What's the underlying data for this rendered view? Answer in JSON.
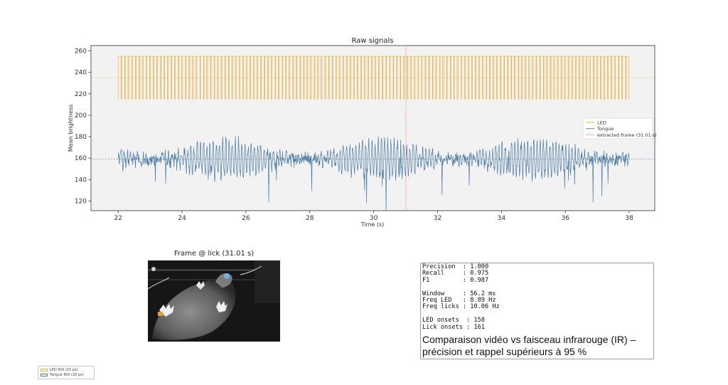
{
  "chart_data": {
    "type": "line",
    "title": "Raw signals",
    "xlabel": "Time (s)",
    "ylabel": "Mean brightness",
    "xlim": [
      21.15,
      38.8
    ],
    "ylim": [
      111,
      265
    ],
    "xticks": [
      22,
      24,
      26,
      28,
      30,
      32,
      34,
      36,
      38
    ],
    "yticks": [
      120,
      140,
      160,
      180,
      200,
      220,
      240,
      260
    ],
    "grid": false,
    "background": "#f2f2f2",
    "legend_position": "center-right",
    "series": [
      {
        "name": "LED",
        "color": "#e5b33f",
        "style": "square-wave",
        "x_range": [
          22.0,
          38.0
        ],
        "high": 255,
        "low": 215,
        "period_s": 0.112,
        "threshold": 235
      },
      {
        "name": "Tongue",
        "color": "#4a7ba6",
        "style": "oscillation",
        "x_range": [
          22.0,
          38.0
        ],
        "mean": 159,
        "amplitude": 17,
        "freq_hz": 10.06,
        "threshold": 159
      }
    ],
    "marker": {
      "name": "extracted frame (31.01 s)",
      "x": 31.01,
      "color": "#e06a6a",
      "style": "dotted"
    }
  },
  "frame": {
    "title": "Frame @ lick (31.01 s)"
  },
  "metrics": {
    "text": "Precision  : 1.000\nRecall     : 0.975\nF1         : 0.987\n\nWindow     : 56.2 ms\nFreq LED   : 8.89 Hz\nFreq licks : 10.06 Hz\n\nLED onsets  : 158\nLick onsets : 161",
    "caption": "Comparaison vidéo vs faisceau infrarouge (IR) – précision et rappel supérieurs à 95 %"
  },
  "roi_legend": {
    "items": [
      {
        "label": "LED ROI (20 px)",
        "color": "#e5b33f"
      },
      {
        "label": "Tongue ROI (18 px)",
        "color": "#4a7ba6"
      }
    ]
  }
}
